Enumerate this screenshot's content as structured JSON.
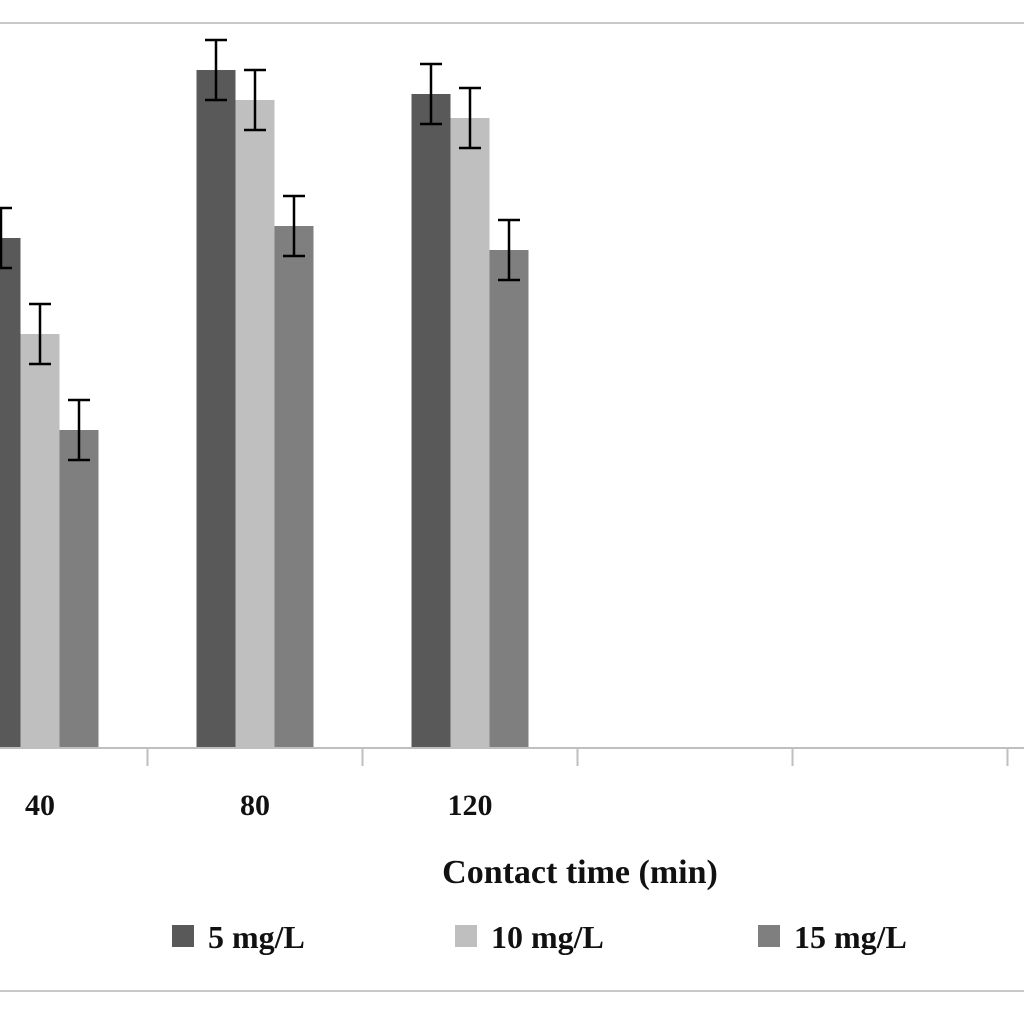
{
  "chart_data": {
    "type": "bar",
    "xlabel": "Contact time (min)",
    "ylabel": "",
    "categories": [
      "40",
      "80",
      "120",
      "",
      ""
    ],
    "series": [
      {
        "name": "5 mg/L",
        "color": "#595959",
        "values": [
          42.5,
          56.5,
          54.5,
          null,
          null
        ],
        "errors": [
          2.5,
          2.5,
          2.5,
          null,
          null
        ]
      },
      {
        "name": "10 mg/L",
        "color": "#bfbfbf",
        "values": [
          34.5,
          54.0,
          52.5,
          null,
          null
        ],
        "errors": [
          2.5,
          2.5,
          2.5,
          null,
          null
        ]
      },
      {
        "name": "15 mg/L",
        "color": "#7f7f7f",
        "values": [
          26.5,
          43.5,
          41.5,
          null,
          null
        ],
        "errors": [
          2.5,
          2.5,
          2.5,
          null,
          null
        ]
      }
    ],
    "ylim": [
      0,
      60
    ],
    "grid": false,
    "legend": "bottom"
  }
}
